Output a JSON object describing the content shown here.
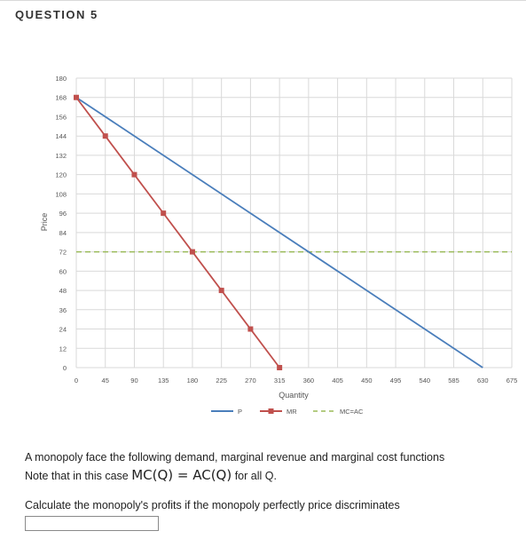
{
  "question": {
    "title": "QUESTION 5"
  },
  "chart_data": {
    "type": "line",
    "xlabel": "Quantity",
    "ylabel": "Price",
    "xlim": [
      0,
      675
    ],
    "ylim": [
      0,
      180
    ],
    "x_ticks": [
      0,
      45,
      90,
      135,
      180,
      225,
      270,
      315,
      360,
      405,
      450,
      495,
      540,
      585,
      630,
      675
    ],
    "y_ticks": [
      0,
      12,
      24,
      36,
      48,
      60,
      72,
      84,
      96,
      108,
      120,
      132,
      144,
      156,
      168,
      180
    ],
    "grid": true,
    "legend": "bottom",
    "series": [
      {
        "name": "P",
        "color": "#4a7ebb",
        "style": "solid",
        "marker": "none",
        "points": [
          [
            0,
            168
          ],
          [
            630,
            0
          ]
        ]
      },
      {
        "name": "MR",
        "color": "#c0504d",
        "style": "solid",
        "marker": "square",
        "points": [
          [
            0,
            168
          ],
          [
            45,
            144
          ],
          [
            90,
            120
          ],
          [
            135,
            96
          ],
          [
            180,
            72
          ],
          [
            225,
            48
          ],
          [
            270,
            24
          ],
          [
            315,
            0
          ]
        ]
      },
      {
        "name": "MC=AC",
        "color": "#9bbb59",
        "style": "dashed",
        "marker": "none",
        "points": [
          [
            0,
            72
          ],
          [
            675,
            72
          ]
        ]
      }
    ]
  },
  "prompt": {
    "line1": "A monopoly face the following demand, marginal revenue and marginal cost functions",
    "line2_prefix": "Note that in this case ",
    "formula": "MC(Q) = AC(Q)",
    "line2_suffix": " for all Q.",
    "line3": "Calculate the monopoly's profits if the monopoly perfectly price discriminates"
  },
  "answer": {
    "value": ""
  }
}
